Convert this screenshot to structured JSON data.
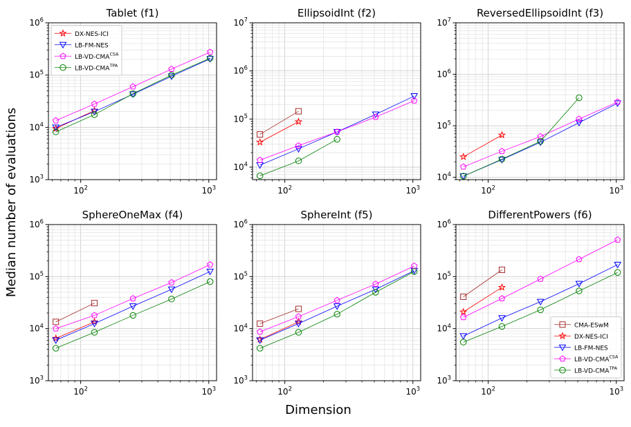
{
  "figure": {
    "ylabel": "Median number of evaluations",
    "xlabel": "Dimension"
  },
  "colors": {
    "CMA-ESwM": "#a52a2a",
    "DX-NES-ICI": "#ff0000",
    "LB-FM-NES": "#0000ff",
    "LB-VD-CMA^CSA": "#ff00ff",
    "LB-VD-CMA^TPA": "#008000"
  },
  "markers": {
    "CMA-ESwM": "square",
    "DX-NES-ICI": "star",
    "LB-FM-NES": "triangle-down",
    "LB-VD-CMA^CSA": "pentagon",
    "LB-VD-CMA^TPA": "circle"
  },
  "legends": [
    {
      "panel": 0,
      "placement": "upper-left",
      "entries": [
        {
          "key": "DX-NES-ICI",
          "label": "DX-NES-ICI",
          "sup": ""
        },
        {
          "key": "LB-FM-NES",
          "label": "LB-FM-NES",
          "sup": ""
        },
        {
          "key": "LB-VD-CMA^CSA",
          "label": "LB-VD-CMA",
          "sup": "CSA"
        },
        {
          "key": "LB-VD-CMA^TPA",
          "label": "LB-VD-CMA",
          "sup": "TPA"
        }
      ]
    },
    {
      "panel": 5,
      "placement": "lower-right",
      "entries": [
        {
          "key": "CMA-ESwM",
          "label": "CMA-ESwM",
          "sup": ""
        },
        {
          "key": "DX-NES-ICI",
          "label": "DX-NES-ICI",
          "sup": ""
        },
        {
          "key": "LB-FM-NES",
          "label": "LB-FM-NES",
          "sup": ""
        },
        {
          "key": "LB-VD-CMA^CSA",
          "label": "LB-VD-CMA",
          "sup": "CSA"
        },
        {
          "key": "LB-VD-CMA^TPA",
          "label": "LB-VD-CMA",
          "sup": "TPA"
        }
      ]
    }
  ],
  "chart_data": [
    {
      "type": "line",
      "title": "Tablet (f1)",
      "xscale": "log",
      "yscale": "log",
      "xlim": [
        56,
        1150
      ],
      "ylim": [
        1000,
        1000000
      ],
      "xticks": [
        {
          "v": 100,
          "label": "10",
          "sup": "2"
        },
        {
          "v": 1000,
          "label": "10",
          "sup": "3"
        }
      ],
      "yticks": [
        {
          "v": 1000,
          "label": "10",
          "sup": "3"
        },
        {
          "v": 10000,
          "label": "10",
          "sup": "4"
        },
        {
          "v": 100000,
          "label": "10",
          "sup": "5"
        },
        {
          "v": 1000000,
          "label": "10",
          "sup": "6"
        }
      ],
      "grid": true,
      "series": [
        {
          "name": "DX-NES-ICI",
          "x": [
            64,
            128
          ],
          "y": [
            9500,
            21000
          ]
        },
        {
          "name": "LB-FM-NES",
          "x": [
            64,
            128,
            256,
            512,
            1024
          ],
          "y": [
            10000,
            20000,
            43000,
            95000,
            205000
          ]
        },
        {
          "name": "LB-VD-CMA^CSA",
          "x": [
            64,
            128,
            256,
            512,
            1024
          ],
          "y": [
            13500,
            28000,
            60000,
            130000,
            275000
          ]
        },
        {
          "name": "LB-VD-CMA^TPA",
          "x": [
            64,
            128,
            256,
            512,
            1024
          ],
          "y": [
            8200,
            17500,
            44000,
            100000,
            210000
          ]
        }
      ]
    },
    {
      "type": "line",
      "title": "EllipsoidInt (f2)",
      "xscale": "log",
      "yscale": "log",
      "xlim": [
        56,
        1150
      ],
      "ylim": [
        5500,
        10000000
      ],
      "xticks": [
        {
          "v": 100,
          "label": "10",
          "sup": "2"
        },
        {
          "v": 1000,
          "label": "10",
          "sup": "3"
        }
      ],
      "yticks": [
        {
          "v": 10000,
          "label": "10",
          "sup": "4"
        },
        {
          "v": 100000,
          "label": "10",
          "sup": "5"
        },
        {
          "v": 1000000,
          "label": "10",
          "sup": "6"
        },
        {
          "v": 10000000,
          "label": "10",
          "sup": "7"
        }
      ],
      "grid": true,
      "series": [
        {
          "name": "CMA-ESwM",
          "x": [
            64,
            128
          ],
          "y": [
            48000,
            145000
          ]
        },
        {
          "name": "DX-NES-ICI",
          "x": [
            64,
            128
          ],
          "y": [
            33000,
            88000
          ]
        },
        {
          "name": "LB-FM-NES",
          "x": [
            64,
            128,
            256,
            512,
            1024
          ],
          "y": [
            11000,
            24000,
            54000,
            125000,
            300000
          ]
        },
        {
          "name": "LB-VD-CMA^CSA",
          "x": [
            64,
            128,
            256,
            512,
            1024
          ],
          "y": [
            14000,
            28000,
            54000,
            110000,
            240000
          ]
        },
        {
          "name": "LB-VD-CMA^TPA",
          "x": [
            64,
            128,
            256
          ],
          "y": [
            6600,
            13500,
            38000
          ]
        }
      ]
    },
    {
      "type": "line",
      "title": "ReversedEllipsoidInt (f3)",
      "xscale": "log",
      "yscale": "log",
      "xlim": [
        56,
        1150
      ],
      "ylim": [
        9000,
        10000000
      ],
      "xticks": [
        {
          "v": 100,
          "label": "10",
          "sup": "2"
        },
        {
          "v": 1000,
          "label": "10",
          "sup": "3"
        }
      ],
      "yticks": [
        {
          "v": 10000,
          "label": "10",
          "sup": "4"
        },
        {
          "v": 100000,
          "label": "10",
          "sup": "5"
        },
        {
          "v": 1000000,
          "label": "10",
          "sup": "6"
        },
        {
          "v": 10000000,
          "label": "10",
          "sup": "7"
        }
      ],
      "grid": true,
      "series": [
        {
          "name": "DX-NES-ICI",
          "x": [
            64,
            128
          ],
          "y": [
            25000,
            66000
          ]
        },
        {
          "name": "LB-FM-NES",
          "x": [
            64,
            128,
            256,
            512,
            1024
          ],
          "y": [
            10500,
            22000,
            48000,
            115000,
            275000
          ]
        },
        {
          "name": "LB-VD-CMA^CSA",
          "x": [
            64,
            128,
            256,
            512,
            1024
          ],
          "y": [
            16000,
            32000,
            62000,
            135000,
            290000
          ]
        },
        {
          "name": "LB-VD-CMA^TPA",
          "x": [
            64,
            128,
            256,
            512
          ],
          "y": [
            10500,
            22500,
            50000,
            350000
          ]
        }
      ]
    },
    {
      "type": "line",
      "title": "SphereOneMax (f4)",
      "xscale": "log",
      "yscale": "log",
      "xlim": [
        56,
        1150
      ],
      "ylim": [
        1000,
        1000000
      ],
      "xticks": [
        {
          "v": 100,
          "label": "10",
          "sup": "2"
        },
        {
          "v": 1000,
          "label": "10",
          "sup": "3"
        }
      ],
      "yticks": [
        {
          "v": 1000,
          "label": "10",
          "sup": "3"
        },
        {
          "v": 10000,
          "label": "10",
          "sup": "4"
        },
        {
          "v": 100000,
          "label": "10",
          "sup": "5"
        },
        {
          "v": 1000000,
          "label": "10",
          "sup": "6"
        }
      ],
      "grid": true,
      "series": [
        {
          "name": "CMA-ESwM",
          "x": [
            64,
            128
          ],
          "y": [
            13500,
            31000
          ]
        },
        {
          "name": "DX-NES-ICI",
          "x": [
            64,
            128
          ],
          "y": [
            6500,
            13500
          ]
        },
        {
          "name": "LB-FM-NES",
          "x": [
            64,
            128,
            256,
            512,
            1024
          ],
          "y": [
            6000,
            12500,
            27000,
            57000,
            125000
          ]
        },
        {
          "name": "LB-VD-CMA^CSA",
          "x": [
            64,
            128,
            256,
            512,
            1024
          ],
          "y": [
            10000,
            18000,
            38000,
            77000,
            170000
          ]
        },
        {
          "name": "LB-VD-CMA^TPA",
          "x": [
            64,
            128,
            256,
            512,
            1024
          ],
          "y": [
            4200,
            8500,
            18000,
            37000,
            80000
          ]
        }
      ]
    },
    {
      "type": "line",
      "title": "SphereInt (f5)",
      "xscale": "log",
      "yscale": "log",
      "xlim": [
        56,
        1150
      ],
      "ylim": [
        1000,
        1000000
      ],
      "xticks": [
        {
          "v": 100,
          "label": "10",
          "sup": "2"
        },
        {
          "v": 1000,
          "label": "10",
          "sup": "3"
        }
      ],
      "yticks": [
        {
          "v": 1000,
          "label": "10",
          "sup": "3"
        },
        {
          "v": 10000,
          "label": "10",
          "sup": "4"
        },
        {
          "v": 100000,
          "label": "10",
          "sup": "5"
        },
        {
          "v": 1000000,
          "label": "10",
          "sup": "6"
        }
      ],
      "grid": true,
      "series": [
        {
          "name": "CMA-ESwM",
          "x": [
            64,
            128
          ],
          "y": [
            12500,
            24000
          ]
        },
        {
          "name": "DX-NES-ICI",
          "x": [
            64,
            128
          ],
          "y": [
            6200,
            13500
          ]
        },
        {
          "name": "LB-FM-NES",
          "x": [
            64,
            128,
            256,
            512,
            1024
          ],
          "y": [
            6000,
            12500,
            27000,
            57000,
            130000
          ]
        },
        {
          "name": "LB-VD-CMA^CSA",
          "x": [
            64,
            128,
            256,
            512,
            1024
          ],
          "y": [
            8700,
            17000,
            35000,
            72000,
            160000
          ]
        },
        {
          "name": "LB-VD-CMA^TPA",
          "x": [
            64,
            128,
            256,
            512,
            1024
          ],
          "y": [
            4200,
            8500,
            19000,
            50000,
            125000
          ]
        }
      ]
    },
    {
      "type": "line",
      "title": "DifferentPowers (f6)",
      "xscale": "log",
      "yscale": "log",
      "xlim": [
        56,
        1150
      ],
      "ylim": [
        1000,
        1000000
      ],
      "xticks": [
        {
          "v": 100,
          "label": "10",
          "sup": "2"
        },
        {
          "v": 1000,
          "label": "10",
          "sup": "3"
        }
      ],
      "yticks": [
        {
          "v": 1000,
          "label": "10",
          "sup": "3"
        },
        {
          "v": 10000,
          "label": "10",
          "sup": "4"
        },
        {
          "v": 100000,
          "label": "10",
          "sup": "5"
        },
        {
          "v": 1000000,
          "label": "10",
          "sup": "6"
        }
      ],
      "grid": true,
      "series": [
        {
          "name": "CMA-ESwM",
          "x": [
            64,
            128
          ],
          "y": [
            41000,
            135000
          ]
        },
        {
          "name": "DX-NES-ICI",
          "x": [
            64,
            128
          ],
          "y": [
            21000,
            62000
          ]
        },
        {
          "name": "LB-FM-NES",
          "x": [
            64,
            128,
            256,
            512,
            1024
          ],
          "y": [
            7200,
            16000,
            33000,
            73000,
            170000
          ]
        },
        {
          "name": "LB-VD-CMA^CSA",
          "x": [
            64,
            128,
            256,
            512,
            1024
          ],
          "y": [
            16500,
            38000,
            90000,
            215000,
            510000
          ]
        },
        {
          "name": "LB-VD-CMA^TPA",
          "x": [
            64,
            128,
            256,
            512,
            1024
          ],
          "y": [
            5500,
            11000,
            23000,
            53000,
            120000
          ]
        }
      ]
    }
  ]
}
